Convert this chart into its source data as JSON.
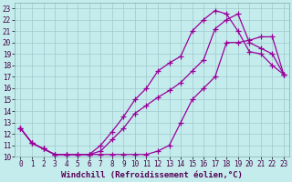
{
  "xlabel": "Windchill (Refroidissement éolien,°C)",
  "xlim": [
    -0.5,
    23.5
  ],
  "ylim": [
    10,
    23.5
  ],
  "xticks": [
    0,
    1,
    2,
    3,
    4,
    5,
    6,
    7,
    8,
    9,
    10,
    11,
    12,
    13,
    14,
    15,
    16,
    17,
    18,
    19,
    20,
    21,
    22,
    23
  ],
  "yticks": [
    10,
    11,
    12,
    13,
    14,
    15,
    16,
    17,
    18,
    19,
    20,
    21,
    22,
    23
  ],
  "bg_color": "#c5eced",
  "grid_color": "#a0c8ca",
  "line_color": "#990099",
  "curve1_x": [
    0,
    1,
    2,
    3,
    4,
    5,
    6,
    7,
    8,
    9,
    10,
    11,
    12,
    13,
    14,
    15,
    16,
    17,
    18,
    19,
    20,
    21,
    22,
    23
  ],
  "curve1_y": [
    12.5,
    11.2,
    10.7,
    10.2,
    10.2,
    10.2,
    10.2,
    10.2,
    10.2,
    10.2,
    10.2,
    10.2,
    10.5,
    11.0,
    13.0,
    15.0,
    16.0,
    17.0,
    20.0,
    20.0,
    20.2,
    20.5,
    20.5,
    17.2
  ],
  "curve2_x": [
    0,
    1,
    2,
    3,
    4,
    5,
    6,
    7,
    8,
    9,
    10,
    11,
    12,
    13,
    14,
    15,
    16,
    17,
    18,
    19,
    20,
    21,
    22,
    23
  ],
  "curve2_y": [
    12.5,
    11.2,
    10.7,
    10.2,
    10.2,
    10.2,
    10.2,
    11.0,
    12.2,
    13.5,
    15.0,
    16.0,
    17.5,
    18.2,
    18.8,
    21.0,
    22.0,
    22.8,
    22.5,
    21.0,
    19.2,
    19.0,
    18.0,
    17.2
  ],
  "curve3_x": [
    0,
    1,
    2,
    3,
    4,
    5,
    6,
    7,
    8,
    9,
    10,
    11,
    12,
    13,
    14,
    15,
    16,
    17,
    18,
    19,
    20,
    21,
    22,
    23
  ],
  "curve3_y": [
    12.5,
    11.2,
    10.7,
    10.2,
    10.2,
    10.2,
    10.2,
    10.5,
    11.5,
    12.5,
    13.8,
    14.5,
    15.2,
    15.8,
    16.5,
    17.5,
    18.5,
    21.2,
    22.0,
    22.5,
    20.0,
    19.5,
    19.0,
    17.2
  ],
  "markersize": 3,
  "linewidth": 0.9,
  "tick_fontsize": 5.5,
  "label_fontsize": 6.5
}
